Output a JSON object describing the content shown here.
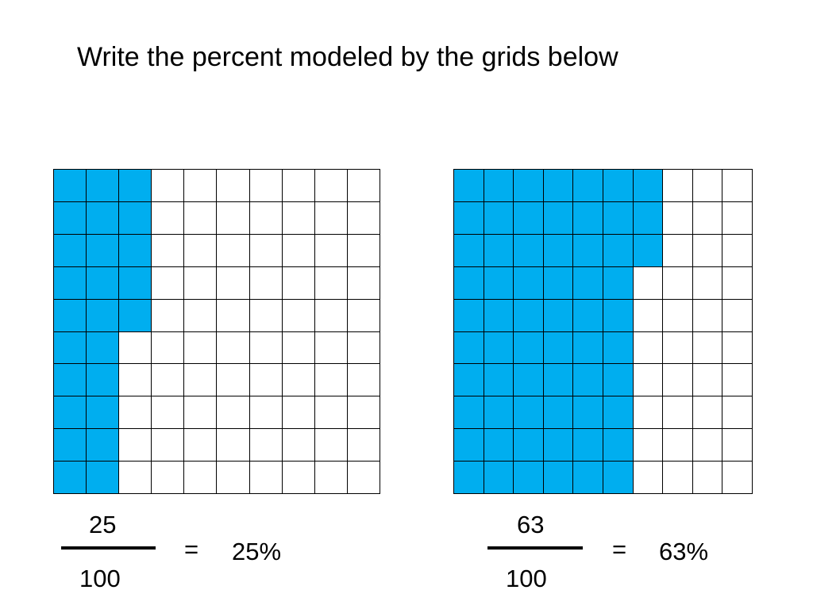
{
  "title": "Write the percent modeled by the grids below",
  "colors": {
    "shaded": "#00AEEF",
    "unshaded": "#FFFFFF",
    "lines": "#000000"
  },
  "problems": [
    {
      "shaded_columns_per_row": [
        3,
        3,
        3,
        3,
        3,
        2,
        2,
        2,
        2,
        2
      ],
      "numerator": "25",
      "denominator": "100",
      "equals": "=",
      "percent": "25%"
    },
    {
      "shaded_columns_per_row": [
        7,
        7,
        7,
        6,
        6,
        6,
        6,
        6,
        6,
        6
      ],
      "numerator": "63",
      "denominator": "100",
      "equals": "=",
      "percent": "63%"
    }
  ]
}
